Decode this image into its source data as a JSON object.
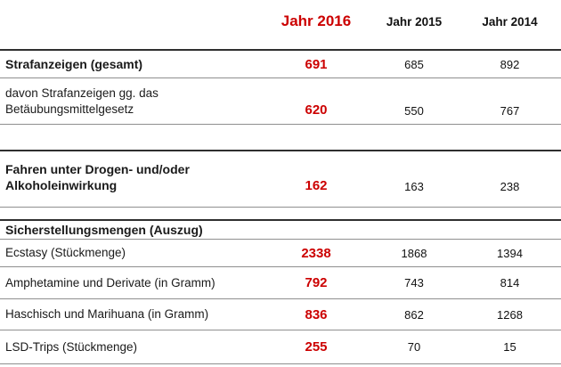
{
  "colors": {
    "accent_red": "#cc0000",
    "line": "#2f2f2f"
  },
  "table": {
    "columns": {
      "c2016": "Jahr 2016",
      "c2015": "Jahr 2015",
      "c2014": "Jahr 2014"
    },
    "rows": [
      {
        "label": "Strafanzeigen (gesamt)",
        "v2016": "691",
        "v2015": "685",
        "v2014": "892"
      },
      {
        "label": "davon Strafanzeigen gg. das",
        "label2": "Betäubungsmittelgesetz",
        "v2016": "620",
        "v2015": "550",
        "v2014": "767"
      },
      {
        "label": "Fahren unter Drogen- und/oder",
        "label2": "Alkoholeinwirkung",
        "v2016": "162",
        "v2015": "163",
        "v2014": "238"
      },
      {
        "label": "Sicherstellungsmengen (Auszug)"
      },
      {
        "label": "Ecstasy (Stückmenge)",
        "v2016": "2338",
        "v2015": "1868",
        "v2014": "1394"
      },
      {
        "label": "Amphetamine und Derivate (in Gramm)",
        "v2016": "792",
        "v2015": "743",
        "v2014": "814"
      },
      {
        "label": "Haschisch und Marihuana (in Gramm)",
        "v2016": "836",
        "v2015": "862",
        "v2014": "1268"
      },
      {
        "label": "LSD-Trips (Stückmenge)",
        "v2016": "255",
        "v2015": "70",
        "v2014": "15"
      }
    ]
  },
  "chart_data": {
    "type": "table",
    "columns": [
      "",
      "Jahr 2016",
      "Jahr 2015",
      "Jahr 2014"
    ],
    "rows": [
      [
        "Strafanzeigen (gesamt)",
        691,
        685,
        892
      ],
      [
        "davon Strafanzeigen gg. das Betäubungsmittelgesetz",
        620,
        550,
        767
      ],
      [
        "Fahren unter Drogen- und/oder Alkoholeinwirkung",
        162,
        163,
        238
      ],
      [
        "Sicherstellungsmengen (Auszug)",
        null,
        null,
        null
      ],
      [
        "Ecstasy (Stückmenge)",
        2338,
        1868,
        1394
      ],
      [
        "Amphetamine und Derivate (in Gramm)",
        792,
        743,
        814
      ],
      [
        "Haschisch und Marihuana (in Gramm)",
        836,
        862,
        1268
      ],
      [
        "LSD-Trips (Stückmenge)",
        255,
        70,
        15
      ]
    ],
    "title": "",
    "notes": "Jahr 2016 column highlighted in red bold"
  }
}
